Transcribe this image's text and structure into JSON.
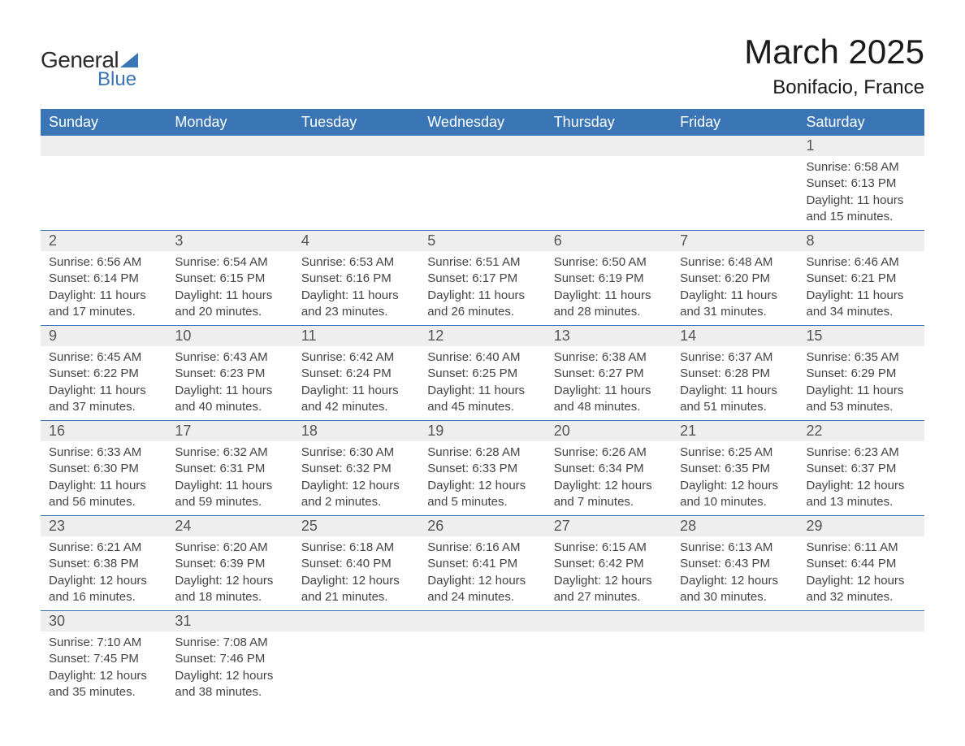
{
  "logo": {
    "text1": "General",
    "text2": "Blue"
  },
  "title": "March 2025",
  "location": "Bonifacio, France",
  "colors": {
    "header_bg": "#3a76b5",
    "header_text": "#ffffff",
    "daynum_bg": "#eeeeee",
    "daynum_text": "#555555",
    "body_text": "#444444",
    "divider": "#3a76b5",
    "page_bg": "#ffffff",
    "logo_dark": "#2b2b2b",
    "logo_blue": "#3a76b5"
  },
  "typography": {
    "title_fontsize": 42,
    "location_fontsize": 24,
    "header_fontsize": 18,
    "daynum_fontsize": 18,
    "cell_fontsize": 15,
    "font_family": "Arial"
  },
  "weekdays": [
    "Sunday",
    "Monday",
    "Tuesday",
    "Wednesday",
    "Thursday",
    "Friday",
    "Saturday"
  ],
  "weeks": [
    [
      null,
      null,
      null,
      null,
      null,
      null,
      {
        "day": "1",
        "sunrise": "Sunrise: 6:58 AM",
        "sunset": "Sunset: 6:13 PM",
        "daylight1": "Daylight: 11 hours",
        "daylight2": "and 15 minutes."
      }
    ],
    [
      {
        "day": "2",
        "sunrise": "Sunrise: 6:56 AM",
        "sunset": "Sunset: 6:14 PM",
        "daylight1": "Daylight: 11 hours",
        "daylight2": "and 17 minutes."
      },
      {
        "day": "3",
        "sunrise": "Sunrise: 6:54 AM",
        "sunset": "Sunset: 6:15 PM",
        "daylight1": "Daylight: 11 hours",
        "daylight2": "and 20 minutes."
      },
      {
        "day": "4",
        "sunrise": "Sunrise: 6:53 AM",
        "sunset": "Sunset: 6:16 PM",
        "daylight1": "Daylight: 11 hours",
        "daylight2": "and 23 minutes."
      },
      {
        "day": "5",
        "sunrise": "Sunrise: 6:51 AM",
        "sunset": "Sunset: 6:17 PM",
        "daylight1": "Daylight: 11 hours",
        "daylight2": "and 26 minutes."
      },
      {
        "day": "6",
        "sunrise": "Sunrise: 6:50 AM",
        "sunset": "Sunset: 6:19 PM",
        "daylight1": "Daylight: 11 hours",
        "daylight2": "and 28 minutes."
      },
      {
        "day": "7",
        "sunrise": "Sunrise: 6:48 AM",
        "sunset": "Sunset: 6:20 PM",
        "daylight1": "Daylight: 11 hours",
        "daylight2": "and 31 minutes."
      },
      {
        "day": "8",
        "sunrise": "Sunrise: 6:46 AM",
        "sunset": "Sunset: 6:21 PM",
        "daylight1": "Daylight: 11 hours",
        "daylight2": "and 34 minutes."
      }
    ],
    [
      {
        "day": "9",
        "sunrise": "Sunrise: 6:45 AM",
        "sunset": "Sunset: 6:22 PM",
        "daylight1": "Daylight: 11 hours",
        "daylight2": "and 37 minutes."
      },
      {
        "day": "10",
        "sunrise": "Sunrise: 6:43 AM",
        "sunset": "Sunset: 6:23 PM",
        "daylight1": "Daylight: 11 hours",
        "daylight2": "and 40 minutes."
      },
      {
        "day": "11",
        "sunrise": "Sunrise: 6:42 AM",
        "sunset": "Sunset: 6:24 PM",
        "daylight1": "Daylight: 11 hours",
        "daylight2": "and 42 minutes."
      },
      {
        "day": "12",
        "sunrise": "Sunrise: 6:40 AM",
        "sunset": "Sunset: 6:25 PM",
        "daylight1": "Daylight: 11 hours",
        "daylight2": "and 45 minutes."
      },
      {
        "day": "13",
        "sunrise": "Sunrise: 6:38 AM",
        "sunset": "Sunset: 6:27 PM",
        "daylight1": "Daylight: 11 hours",
        "daylight2": "and 48 minutes."
      },
      {
        "day": "14",
        "sunrise": "Sunrise: 6:37 AM",
        "sunset": "Sunset: 6:28 PM",
        "daylight1": "Daylight: 11 hours",
        "daylight2": "and 51 minutes."
      },
      {
        "day": "15",
        "sunrise": "Sunrise: 6:35 AM",
        "sunset": "Sunset: 6:29 PM",
        "daylight1": "Daylight: 11 hours",
        "daylight2": "and 53 minutes."
      }
    ],
    [
      {
        "day": "16",
        "sunrise": "Sunrise: 6:33 AM",
        "sunset": "Sunset: 6:30 PM",
        "daylight1": "Daylight: 11 hours",
        "daylight2": "and 56 minutes."
      },
      {
        "day": "17",
        "sunrise": "Sunrise: 6:32 AM",
        "sunset": "Sunset: 6:31 PM",
        "daylight1": "Daylight: 11 hours",
        "daylight2": "and 59 minutes."
      },
      {
        "day": "18",
        "sunrise": "Sunrise: 6:30 AM",
        "sunset": "Sunset: 6:32 PM",
        "daylight1": "Daylight: 12 hours",
        "daylight2": "and 2 minutes."
      },
      {
        "day": "19",
        "sunrise": "Sunrise: 6:28 AM",
        "sunset": "Sunset: 6:33 PM",
        "daylight1": "Daylight: 12 hours",
        "daylight2": "and 5 minutes."
      },
      {
        "day": "20",
        "sunrise": "Sunrise: 6:26 AM",
        "sunset": "Sunset: 6:34 PM",
        "daylight1": "Daylight: 12 hours",
        "daylight2": "and 7 minutes."
      },
      {
        "day": "21",
        "sunrise": "Sunrise: 6:25 AM",
        "sunset": "Sunset: 6:35 PM",
        "daylight1": "Daylight: 12 hours",
        "daylight2": "and 10 minutes."
      },
      {
        "day": "22",
        "sunrise": "Sunrise: 6:23 AM",
        "sunset": "Sunset: 6:37 PM",
        "daylight1": "Daylight: 12 hours",
        "daylight2": "and 13 minutes."
      }
    ],
    [
      {
        "day": "23",
        "sunrise": "Sunrise: 6:21 AM",
        "sunset": "Sunset: 6:38 PM",
        "daylight1": "Daylight: 12 hours",
        "daylight2": "and 16 minutes."
      },
      {
        "day": "24",
        "sunrise": "Sunrise: 6:20 AM",
        "sunset": "Sunset: 6:39 PM",
        "daylight1": "Daylight: 12 hours",
        "daylight2": "and 18 minutes."
      },
      {
        "day": "25",
        "sunrise": "Sunrise: 6:18 AM",
        "sunset": "Sunset: 6:40 PM",
        "daylight1": "Daylight: 12 hours",
        "daylight2": "and 21 minutes."
      },
      {
        "day": "26",
        "sunrise": "Sunrise: 6:16 AM",
        "sunset": "Sunset: 6:41 PM",
        "daylight1": "Daylight: 12 hours",
        "daylight2": "and 24 minutes."
      },
      {
        "day": "27",
        "sunrise": "Sunrise: 6:15 AM",
        "sunset": "Sunset: 6:42 PM",
        "daylight1": "Daylight: 12 hours",
        "daylight2": "and 27 minutes."
      },
      {
        "day": "28",
        "sunrise": "Sunrise: 6:13 AM",
        "sunset": "Sunset: 6:43 PM",
        "daylight1": "Daylight: 12 hours",
        "daylight2": "and 30 minutes."
      },
      {
        "day": "29",
        "sunrise": "Sunrise: 6:11 AM",
        "sunset": "Sunset: 6:44 PM",
        "daylight1": "Daylight: 12 hours",
        "daylight2": "and 32 minutes."
      }
    ],
    [
      {
        "day": "30",
        "sunrise": "Sunrise: 7:10 AM",
        "sunset": "Sunset: 7:45 PM",
        "daylight1": "Daylight: 12 hours",
        "daylight2": "and 35 minutes."
      },
      {
        "day": "31",
        "sunrise": "Sunrise: 7:08 AM",
        "sunset": "Sunset: 7:46 PM",
        "daylight1": "Daylight: 12 hours",
        "daylight2": "and 38 minutes."
      },
      null,
      null,
      null,
      null,
      null
    ]
  ]
}
